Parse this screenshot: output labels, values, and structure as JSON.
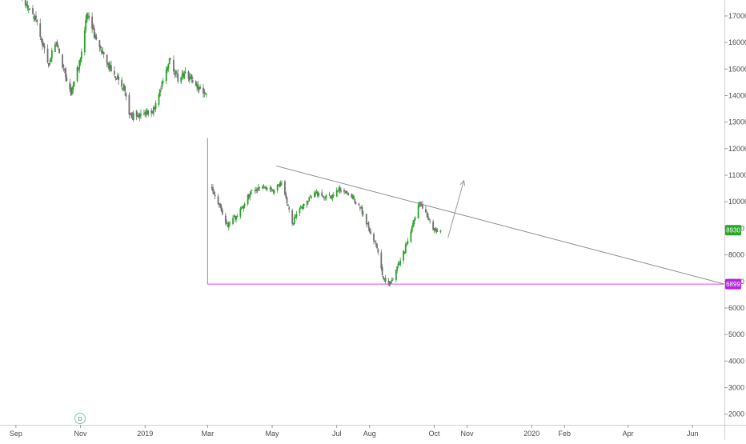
{
  "chart_data": {
    "type": "candlestick",
    "price_axis": {
      "ticks": [
        2000,
        3000,
        4000,
        5000,
        6000,
        7000,
        8000,
        9000,
        10000,
        11000,
        12000,
        13000,
        14000,
        15000,
        16000,
        17000
      ],
      "tick_labels": [
        "2000",
        "3000",
        "4000",
        "5000",
        "6000",
        "7000",
        "8000",
        "9000",
        "10000",
        "11000",
        "12000",
        "13000",
        "14000",
        "15000",
        "16000",
        "17000"
      ],
      "ylim": [
        1600,
        17600
      ],
      "side": "right"
    },
    "time_axis": {
      "tick_labels": [
        "Sep",
        "Nov",
        "2019",
        "Mar",
        "May",
        "Jul",
        "Aug",
        "Oct",
        "Nov",
        "2020",
        "Feb",
        "Apr",
        "Jun"
      ],
      "tick_dates": [
        "2018-09-01",
        "2018-11-01",
        "2019-01-01",
        "2019-03-01",
        "2019-05-01",
        "2019-07-01",
        "2019-08-01",
        "2019-10-01",
        "2019-11-01",
        "2020-01-01",
        "2020-02-01",
        "2020-04-01",
        "2020-06-01"
      ],
      "xlim": [
        "2018-08-17",
        "2020-07-01"
      ]
    },
    "interval_badge": "D",
    "colors": {
      "up": "#26a526",
      "down": "#707070",
      "trendline": "#8c8c8c",
      "support": "#e040fb",
      "last_price_tag": "#26a526",
      "support_tag": "#b325e0"
    },
    "price_tags": [
      {
        "label": "8930",
        "value": 8930,
        "color": "#26a526"
      },
      {
        "label": "6899",
        "value": 6899,
        "color": "#b325e0"
      }
    ],
    "segments": [
      {
        "name": "",
        "anchors": [
          [
            "2018-09-07",
            17600
          ],
          [
            "2018-09-20",
            16800
          ],
          [
            "2018-10-02",
            15200
          ],
          [
            "2018-10-09",
            16100
          ],
          [
            "2018-10-16",
            15000
          ],
          [
            "2018-10-23",
            14100
          ],
          [
            "2018-11-01",
            15400
          ],
          [
            "2018-11-07",
            17000
          ],
          [
            "2018-11-15",
            16200
          ],
          [
            "2018-11-26",
            15200
          ],
          [
            "2018-12-05",
            14700
          ],
          [
            "2018-12-12",
            14300
          ],
          [
            "2018-12-18",
            13200
          ],
          [
            "2018-12-28",
            13300
          ],
          [
            "2019-01-08",
            13400
          ],
          [
            "2019-01-16",
            14300
          ],
          [
            "2019-01-24",
            15400
          ],
          [
            "2019-02-01",
            14600
          ],
          [
            "2019-02-08",
            14900
          ],
          [
            "2019-02-18",
            14400
          ],
          [
            "2019-02-28",
            14000
          ]
        ]
      },
      {
        "name": "",
        "anchors": [
          [
            "2019-03-05",
            10500
          ],
          [
            "2019-03-12",
            9900
          ],
          [
            "2019-03-20",
            9100
          ],
          [
            "2019-03-30",
            9600
          ],
          [
            "2019-04-10",
            10300
          ],
          [
            "2019-04-20",
            10600
          ],
          [
            "2019-05-01",
            10400
          ],
          [
            "2019-05-10",
            10700
          ],
          [
            "2019-05-20",
            9200
          ],
          [
            "2019-05-28",
            9800
          ],
          [
            "2019-06-10",
            10300
          ],
          [
            "2019-06-25",
            10200
          ],
          [
            "2019-07-05",
            10500
          ],
          [
            "2019-07-15",
            10200
          ],
          [
            "2019-07-25",
            9600
          ],
          [
            "2019-08-01",
            8900
          ],
          [
            "2019-08-08",
            8300
          ],
          [
            "2019-08-13",
            7300
          ],
          [
            "2019-08-17",
            6800
          ],
          [
            "2019-08-22",
            7000
          ],
          [
            "2019-08-28",
            7600
          ],
          [
            "2019-09-03",
            8200
          ],
          [
            "2019-09-10",
            9000
          ],
          [
            "2019-09-17",
            10000
          ],
          [
            "2019-09-22",
            9600
          ],
          [
            "2019-09-28",
            9100
          ],
          [
            "2019-10-03",
            8800
          ],
          [
            "2019-10-07",
            8930
          ]
        ]
      }
    ],
    "drawings": [
      {
        "type": "trendline",
        "from": [
          "2019-05-05",
          11350
        ],
        "to": [
          "2020-07-01",
          6900
        ]
      },
      {
        "type": "horizontal_ray",
        "value": 6899,
        "from_date": "2019-03-01",
        "to_date": "2020-07-01"
      },
      {
        "type": "vertical_line",
        "date": "2019-03-01",
        "from_value": 6899,
        "to_value": 12400
      },
      {
        "type": "arrow",
        "from": [
          "2019-10-14",
          8650
        ],
        "to": [
          "2019-10-29",
          10800
        ]
      }
    ]
  }
}
